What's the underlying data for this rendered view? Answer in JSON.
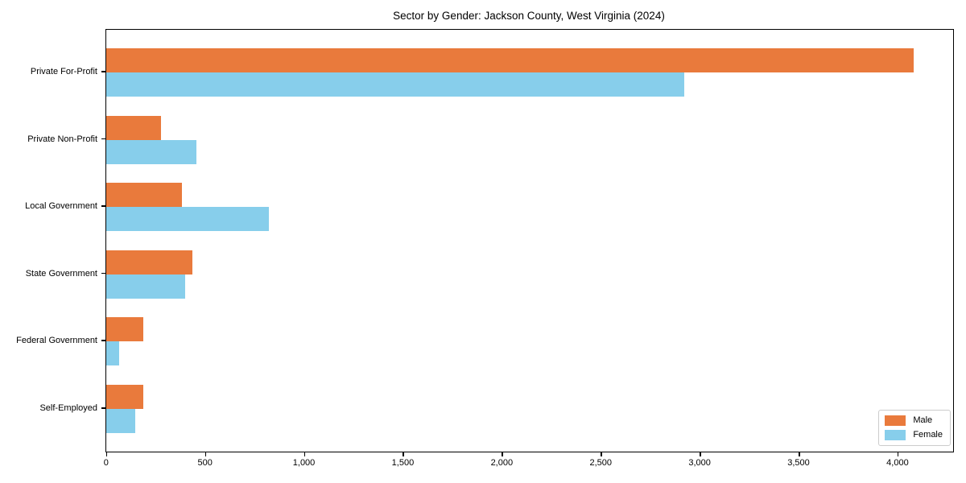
{
  "chart_data": {
    "type": "bar",
    "orientation": "horizontal",
    "title": "Sector by Gender: Jackson County, West Virginia (2024)",
    "categories": [
      "Private For-Profit",
      "Private Non-Profit",
      "Local Government",
      "State Government",
      "Federal Government",
      "Self-Employed"
    ],
    "series": [
      {
        "name": "Male",
        "color": "#E97A3C",
        "values": [
          4080,
          276,
          383,
          436,
          187,
          188
        ]
      },
      {
        "name": "Female",
        "color": "#87CEEB",
        "values": [
          2923,
          455,
          821,
          398,
          64,
          146
        ]
      }
    ],
    "xlabel": "",
    "ylabel": "",
    "xlim": [
      0,
      4280
    ],
    "xticks": [
      0,
      500,
      1000,
      1500,
      2000,
      2500,
      3000,
      3500,
      4000
    ],
    "xtick_labels": [
      "0",
      "500",
      "1,000",
      "1,500",
      "2,000",
      "2,500",
      "3,000",
      "3,500",
      "4,000"
    ],
    "grid": false,
    "legend_position": "lower right",
    "axis_color": "#000000",
    "background_color": "#ffffff"
  }
}
